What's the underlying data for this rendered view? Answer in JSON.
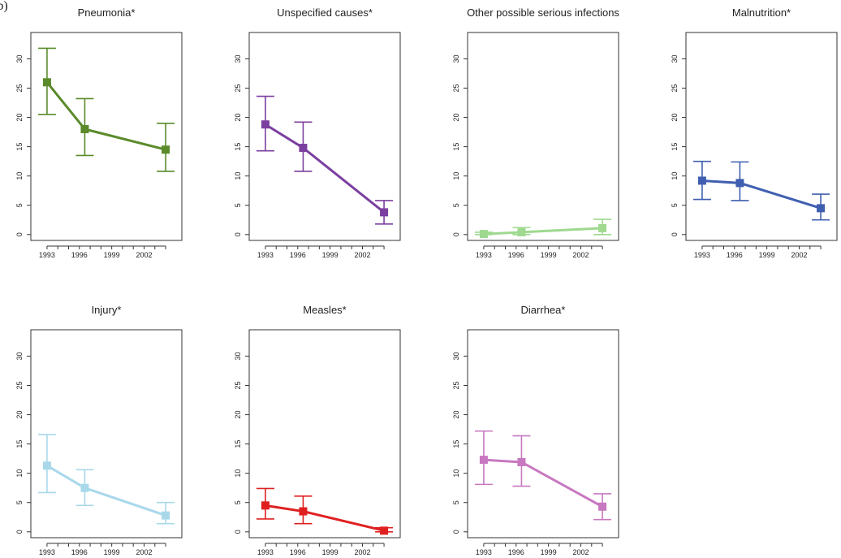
{
  "figure": {
    "panel_label": "(b)"
  },
  "chart_data": [
    {
      "type": "line",
      "title": "Pneumonia*",
      "color": "#5a8a2a",
      "x": [
        1993,
        1996.5,
        2004
      ],
      "values": [
        26,
        18,
        14.5
      ],
      "err_low": [
        20.5,
        13.5,
        10.8
      ],
      "err_high": [
        31.8,
        23.2,
        19
      ],
      "xticks": [
        "1993",
        "1996",
        "1999",
        "2002"
      ],
      "yticks": [
        "0",
        "5",
        "10",
        "15",
        "20",
        "25",
        "30"
      ],
      "xlim": [
        1991.5,
        2005.5
      ],
      "ylim": [
        -1,
        34.5
      ]
    },
    {
      "type": "line",
      "title": "Unspecified causes*",
      "color": "#7b3fa0",
      "x": [
        1993,
        1996.5,
        2004
      ],
      "values": [
        18.8,
        14.8,
        3.8
      ],
      "err_low": [
        14.3,
        10.8,
        1.8
      ],
      "err_high": [
        23.6,
        19.2,
        5.8
      ],
      "xticks": [
        "1993",
        "1996",
        "1999",
        "2002"
      ],
      "yticks": [
        "0",
        "5",
        "10",
        "15",
        "20",
        "25",
        "30"
      ],
      "xlim": [
        1991.5,
        2005.5
      ],
      "ylim": [
        -1,
        34.5
      ]
    },
    {
      "type": "line",
      "title": "Other possible serious infections",
      "color": "#9ed98f",
      "x": [
        1993,
        1996.5,
        2004
      ],
      "values": [
        0.1,
        0.4,
        1.1
      ],
      "err_low": [
        0,
        0,
        0
      ],
      "err_high": [
        0.4,
        1.2,
        2.6
      ],
      "xticks": [
        "1993",
        "1996",
        "1999",
        "2002"
      ],
      "yticks": [
        "0",
        "5",
        "10",
        "15",
        "20",
        "25",
        "30"
      ],
      "xlim": [
        1991.5,
        2005.5
      ],
      "ylim": [
        -1,
        34.5
      ]
    },
    {
      "type": "line",
      "title": "Malnutrition*",
      "color": "#3f5fb0",
      "x": [
        1993,
        1996.5,
        2004
      ],
      "values": [
        9.2,
        8.8,
        4.5
      ],
      "err_low": [
        6,
        5.8,
        2.5
      ],
      "err_high": [
        12.5,
        12.4,
        6.9
      ],
      "xticks": [
        "1993",
        "1996",
        "1999",
        "2002"
      ],
      "yticks": [
        "0",
        "5",
        "10",
        "15",
        "20",
        "25",
        "30"
      ],
      "xlim": [
        1991.5,
        2005.5
      ],
      "ylim": [
        -1,
        34.5
      ]
    },
    {
      "type": "line",
      "title": "Injury*",
      "color": "#a8d8ea",
      "x": [
        1993,
        1996.5,
        2004
      ],
      "values": [
        11.3,
        7.5,
        2.8
      ],
      "err_low": [
        6.7,
        4.5,
        1.4
      ],
      "err_high": [
        16.6,
        10.6,
        5
      ],
      "xticks": [
        "1993",
        "1996",
        "1999",
        "2002"
      ],
      "yticks": [
        "0",
        "5",
        "10",
        "15",
        "20",
        "25",
        "30"
      ],
      "xlim": [
        1991.5,
        2005.5
      ],
      "ylim": [
        -1,
        34.5
      ]
    },
    {
      "type": "line",
      "title": "Measles*",
      "color": "#e02020",
      "x": [
        1993,
        1996.5,
        2004
      ],
      "values": [
        4.5,
        3.5,
        0.2
      ],
      "err_low": [
        2.2,
        1.4,
        0
      ],
      "err_high": [
        7.4,
        6.1,
        0.7
      ],
      "xticks": [
        "1993",
        "1996",
        "1999",
        "2002"
      ],
      "yticks": [
        "0",
        "5",
        "10",
        "15",
        "20",
        "25",
        "30"
      ],
      "xlim": [
        1991.5,
        2005.5
      ],
      "ylim": [
        -1,
        34.5
      ]
    },
    {
      "type": "line",
      "title": "Diarrhea*",
      "color": "#c878c0",
      "x": [
        1993,
        1996.5,
        2004
      ],
      "values": [
        12.3,
        11.9,
        4.3
      ],
      "err_low": [
        8.1,
        7.8,
        2.1
      ],
      "err_high": [
        17.2,
        16.4,
        6.5
      ],
      "xticks": [
        "1993",
        "1996",
        "1999",
        "2002"
      ],
      "yticks": [
        "0",
        "5",
        "10",
        "15",
        "20",
        "25",
        "30"
      ],
      "xlim": [
        1991.5,
        2005.5
      ],
      "ylim": [
        -1,
        34.5
      ]
    }
  ]
}
